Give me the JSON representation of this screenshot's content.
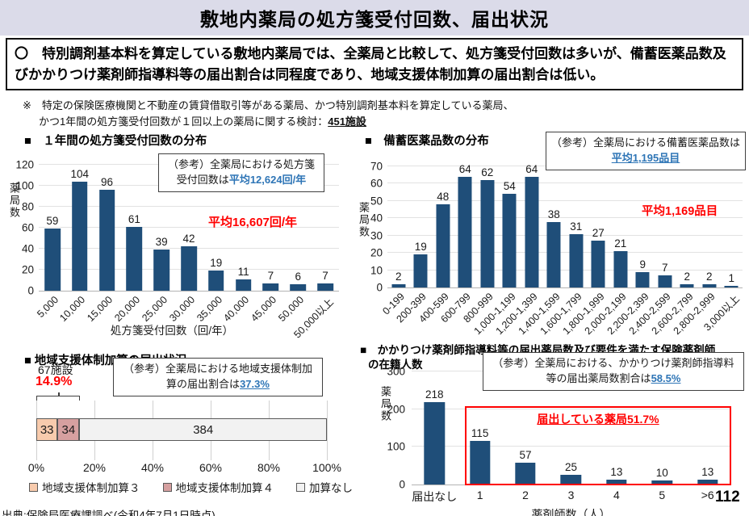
{
  "page": {
    "title": "敷地内薬局の処方箋受付回数、届出状況",
    "summary": "〇　特別調剤基本料を算定している敷地内薬局では、全薬局と比較して、処方箋受付回数は多いが、備蓄医薬品数及びかかりつけ薬剤師指導料等の届出割合は同程度であり、地域支援体制加算の届出割合は低い。",
    "note_line1": "※　特定の保険医療機関と不動産の賃貸借取引等がある薬局、かつ特別調剤基本料を算定している薬局、",
    "note_line2_prefix": "かつ1年間の処方箋受付回数が１回以上の薬局に関する検討：",
    "note_line2_emphasis": "451施設",
    "source": "出典:保険局医療課調べ(令和4年7月1日時点)",
    "page_number": "112"
  },
  "colors": {
    "bar_navy": "#1f4e79",
    "accent_blue": "#2e75b6",
    "accent_red": "#ff0000",
    "header_bg": "#dbdbe9",
    "seg_peach": "#f8cbad",
    "seg_rose": "#d6a0a0",
    "seg_gray": "#f2f2f2"
  },
  "chart_data": [
    {
      "id": "prescription-count-distribution",
      "type": "bar",
      "title": "■　１年間の処方箋受付回数の分布",
      "ylabel": "薬局数",
      "xlabel": "処方箋受付回数（回/年）",
      "ylim": [
        0,
        120
      ],
      "yticks": [
        0,
        20,
        40,
        60,
        80,
        100,
        120
      ],
      "rotate_labels": true,
      "bar_color": "#1f4e79",
      "categories": [
        "5,000",
        "10,000",
        "15,000",
        "20,000",
        "25,000",
        "30,000",
        "35,000",
        "40,000",
        "45,000",
        "50,000",
        "50,000以上"
      ],
      "values": [
        59,
        104,
        96,
        61,
        39,
        42,
        19,
        11,
        7,
        6,
        7
      ],
      "annotation_prefix": "（参考）全薬局における処方箋受付回数は",
      "annotation_highlight": "平均12,624回/年",
      "mean_label": "平均16,607回/年"
    },
    {
      "id": "stocked-medicines-distribution",
      "type": "bar",
      "title": "■　備蓄医薬品数の分布",
      "ylabel": "薬局数",
      "xlabel": "",
      "ylim": [
        0,
        70
      ],
      "yticks": [
        0,
        10,
        20,
        30,
        40,
        50,
        60,
        70
      ],
      "rotate_labels": true,
      "bar_color": "#1f4e79",
      "categories": [
        "0-199",
        "200-399",
        "400-599",
        "600-799",
        "800-999",
        "1,000-1,199",
        "1,200-1,399",
        "1,400-1,599",
        "1,600-1,799",
        "1,800-1,999",
        "2,000-2,199",
        "2,200-2,399",
        "2,400-2,599",
        "2,600-2,799",
        "2,800-2,999",
        "3,000以上"
      ],
      "values": [
        2,
        19,
        48,
        64,
        62,
        54,
        64,
        38,
        31,
        27,
        21,
        9,
        7,
        2,
        2,
        1
      ],
      "annotation_prefix": "（参考）全薬局における備蓄医薬品数は",
      "annotation_highlight": "平均1,195品目",
      "mean_label": "平均1,169品目"
    },
    {
      "id": "chiiki-shien-kasan-notification",
      "type": "stacked-bar-horizontal",
      "title": "■ 地域支援体制加算の届出状況",
      "group_count_label": "67施設",
      "group_pct_label": "14.9%",
      "segments": [
        {
          "label": "地域支援体制加算３",
          "value": 33,
          "color": "#f8cbad"
        },
        {
          "label": "地域支援体制加算４",
          "value": 34,
          "color": "#d6a0a0"
        },
        {
          "label": "加算なし",
          "value": 384,
          "color": "#f2f2f2"
        }
      ],
      "xticks": [
        "0%",
        "20%",
        "40%",
        "60%",
        "80%",
        "100%"
      ],
      "annotation_prefix": "（参考）全薬局における地域支援体制加算の届出割合は",
      "annotation_highlight": "37.3%"
    },
    {
      "id": "kakaritsuke-pharmacist-distribution",
      "type": "bar",
      "title_line1": "■　かかりつけ薬剤師指導料等の届出薬局数及び要件を満たす保険薬剤師",
      "title_line2": "の在籍人数",
      "ylabel": "薬局数",
      "xlabel": "薬剤師数（人）",
      "ylim": [
        0,
        300
      ],
      "yticks": [
        0,
        100,
        200,
        300
      ],
      "rotate_labels": false,
      "bar_color": "#1f4e79",
      "categories": [
        "届出なし",
        "1",
        "2",
        "3",
        "4",
        "5",
        ">6"
      ],
      "values": [
        218,
        115,
        57,
        25,
        13,
        10,
        13
      ],
      "annotation_prefix": "（参考）全薬局における、かかりつけ薬剤師指導料等の届出薬局数割合は",
      "annotation_highlight": "58.5%",
      "highlight_box_label": "届出している薬局51.7%"
    }
  ]
}
